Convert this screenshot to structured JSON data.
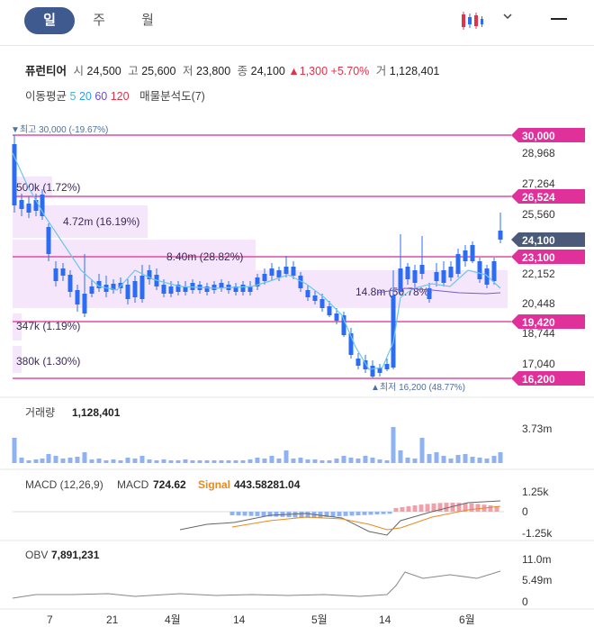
{
  "tabs": [
    {
      "label": "일",
      "active": true
    },
    {
      "label": "주",
      "active": false
    },
    {
      "label": "월",
      "active": false
    }
  ],
  "stock": {
    "name": "퓨런티어",
    "open_label": "시",
    "open": "24,500",
    "high_label": "고",
    "high": "25,600",
    "low_label": "저",
    "low": "23,800",
    "close_label": "종",
    "close": "24,100",
    "change": "▲1,300",
    "change_pct": "+5.70%",
    "volume_label": "거",
    "volume": "1,128,401"
  },
  "indicators": {
    "ma_label": "이동평균",
    "ma5": "5",
    "ma20": "20",
    "ma60": "60",
    "ma120": "120",
    "volume_profile": "매물분석도(7)"
  },
  "colors": {
    "up": "#e0324a",
    "down": "#2a6df4",
    "accent": "#3f5a8f",
    "line": "#e14fa5"
  },
  "price_panel": {
    "high_marker": "▼최고 30,000 (-19.67%)",
    "low_marker": "▲최저 16,200 (48.77%)",
    "axis_ticks": [
      "28,968",
      "27,264",
      "25,560",
      "22,152",
      "20,448",
      "18,744",
      "17,040"
    ],
    "tags": [
      {
        "label": "30,000",
        "kind": "pink"
      },
      {
        "label": "26,524",
        "kind": "pink"
      },
      {
        "label": "24,100",
        "kind": "current"
      },
      {
        "label": "23,100",
        "kind": "pink"
      },
      {
        "label": "19,420",
        "kind": "pink"
      },
      {
        "label": "16,200",
        "kind": "pink"
      }
    ],
    "profile_labels": [
      "500k (1.72%)",
      "4.72m (16.19%)",
      "8.40m (28.82%)",
      "14.8m (50.78%)",
      "347k (1.19%)",
      "380k (1.30%)"
    ]
  },
  "volume_panel": {
    "label": "거래량",
    "value": "1,128,401",
    "axis": "3.73m"
  },
  "macd_panel": {
    "label": "MACD (12,26,9)",
    "macd_label": "MACD",
    "macd_value": "724.62",
    "signal_label": "Signal",
    "signal_value": "443.58281.04",
    "axis": [
      "1.25k",
      "0",
      "-1.25k"
    ]
  },
  "obv_panel": {
    "label": "OBV",
    "value": "7,891,231",
    "axis": [
      "11.0m",
      "5.49m",
      "0"
    ]
  },
  "x_axis": [
    "7",
    "21",
    "4월",
    "14",
    "5월",
    "14",
    "6월"
  ]
}
